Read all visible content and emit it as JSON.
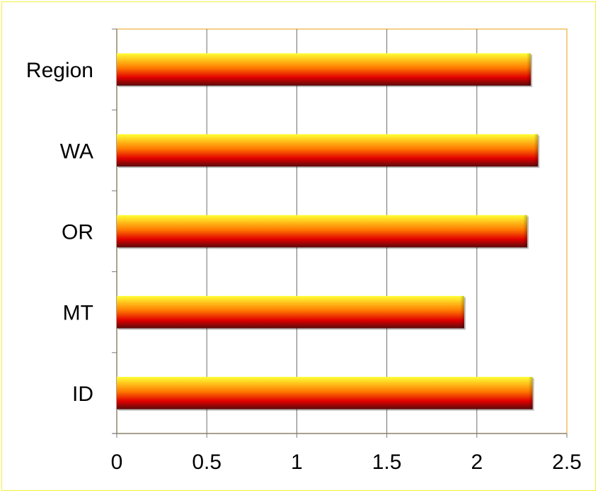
{
  "chart_data": {
    "type": "bar",
    "orientation": "horizontal",
    "categories": [
      "Region",
      "WA",
      "OR",
      "MT",
      "ID"
    ],
    "values": [
      2.3,
      2.34,
      2.28,
      1.93,
      2.31
    ],
    "xlim": [
      0,
      2.5
    ],
    "xticks": [
      "0",
      "0.5",
      "1",
      "1.5",
      "2",
      "2.5"
    ],
    "grid": "vertical",
    "legend": "none",
    "title": "",
    "xlabel": "",
    "ylabel": "",
    "colors": {
      "bar_top": "#ffff33",
      "bar_mid": "#ff7a00",
      "bar_low": "#e00000",
      "bar_bottom": "#5a0b0b",
      "frame_border": "#f3ef3a",
      "plot_border": "#f0c060",
      "gridline": "#6e6e6e",
      "axis": "#7a7a7a"
    }
  }
}
